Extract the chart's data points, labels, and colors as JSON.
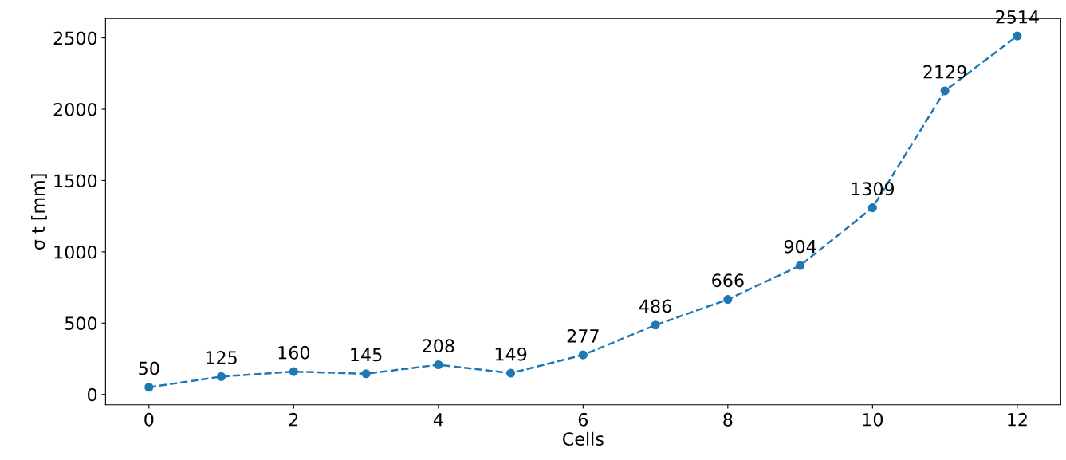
{
  "chart_data": {
    "type": "line",
    "xlabel": "Cells",
    "ylabel": "σ t [mm]",
    "x": [
      0,
      1,
      2,
      3,
      4,
      5,
      6,
      7,
      8,
      9,
      10,
      11,
      12
    ],
    "series": [
      {
        "color": "#1f77b4",
        "values": [
          50,
          125,
          160,
          145,
          208,
          149,
          277,
          486,
          666,
          904,
          1309,
          2129,
          2514
        ]
      }
    ],
    "xlim": [
      -0.6,
      12.6
    ],
    "xticks": [
      0,
      2,
      4,
      6,
      8,
      10,
      12
    ],
    "ylim": [
      -73,
      2637
    ],
    "yticks": [
      0,
      500,
      1000,
      1500,
      2000,
      2500
    ],
    "data_labels": true,
    "marker": "circle",
    "line_style": "dashed",
    "grid": false,
    "legend": false
  }
}
